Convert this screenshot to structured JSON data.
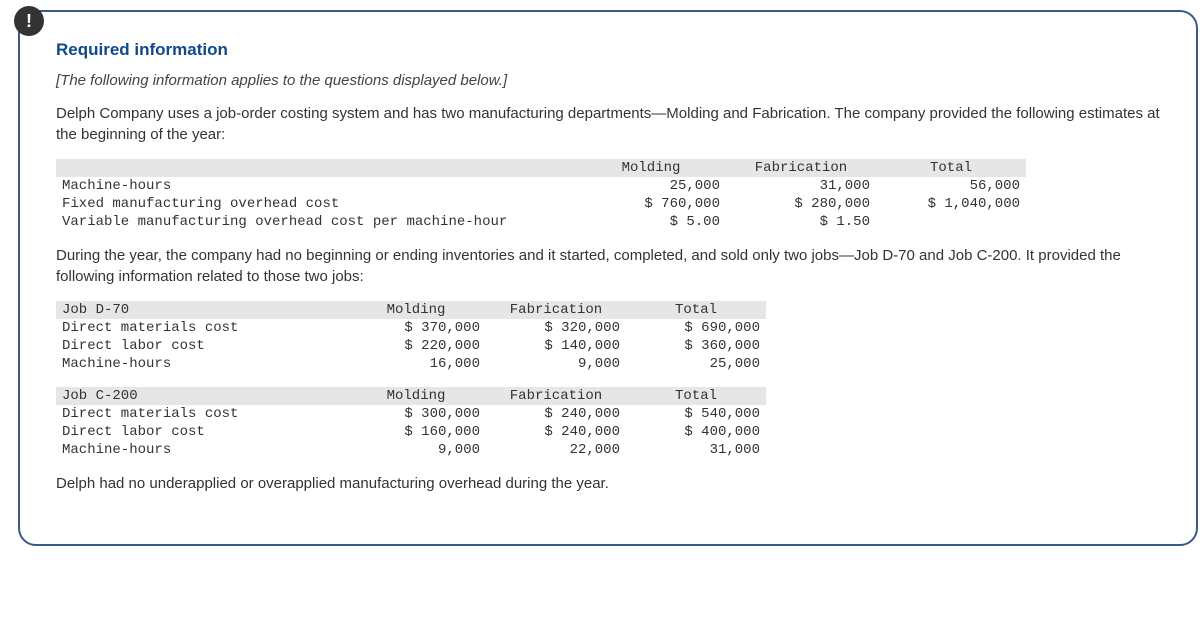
{
  "icon": "!",
  "title": "Required information",
  "subtitle": "[The following information applies to the questions displayed below.]",
  "para1": "Delph Company uses a job-order costing system and has two manufacturing departments—Molding and Fabrication. The company provided the following estimates at the beginning of the year:",
  "para2": "During the year, the company had no beginning or ending inventories and it started, completed, and sold only two jobs—Job D-70 and Job C-200. It provided the following information related to those two jobs:",
  "para3": "Delph had no underapplied or overapplied manufacturing overhead during the year.",
  "colors": {
    "border": "#3a5a8a",
    "title": "#0e4a8a",
    "header_bg": "#e6e6e6",
    "text": "#333333",
    "icon_bg": "#333333"
  },
  "estimates": {
    "columns": [
      "Molding",
      "Fabrication",
      "Total"
    ],
    "rows": [
      {
        "label": "Machine-hours",
        "molding": "25,000",
        "fabrication": "31,000",
        "total": "56,000"
      },
      {
        "label": "Fixed manufacturing overhead cost",
        "molding": "$ 760,000",
        "fabrication": "$ 280,000",
        "total": "$ 1,040,000"
      },
      {
        "label": "Variable manufacturing overhead cost per machine-hour",
        "molding": "$ 5.00",
        "fabrication": "$ 1.50",
        "total": ""
      }
    ]
  },
  "jobD70": {
    "name": "Job D-70",
    "columns": [
      "Molding",
      "Fabrication",
      "Total"
    ],
    "rows": [
      {
        "label": "Direct materials cost",
        "molding": "$ 370,000",
        "fabrication": "$ 320,000",
        "total": "$ 690,000"
      },
      {
        "label": "Direct labor cost",
        "molding": "$ 220,000",
        "fabrication": "$ 140,000",
        "total": "$ 360,000"
      },
      {
        "label": "Machine-hours",
        "molding": "16,000",
        "fabrication": "9,000",
        "total": "25,000"
      }
    ]
  },
  "jobC200": {
    "name": "Job C-200",
    "columns": [
      "Molding",
      "Fabrication",
      "Total"
    ],
    "rows": [
      {
        "label": "Direct materials cost",
        "molding": "$ 300,000",
        "fabrication": "$ 240,000",
        "total": "$ 540,000"
      },
      {
        "label": "Direct labor cost",
        "molding": "$ 160,000",
        "fabrication": "$ 240,000",
        "total": "$ 400,000"
      },
      {
        "label": "Machine-hours",
        "molding": "9,000",
        "fabrication": "22,000",
        "total": "31,000"
      }
    ]
  }
}
